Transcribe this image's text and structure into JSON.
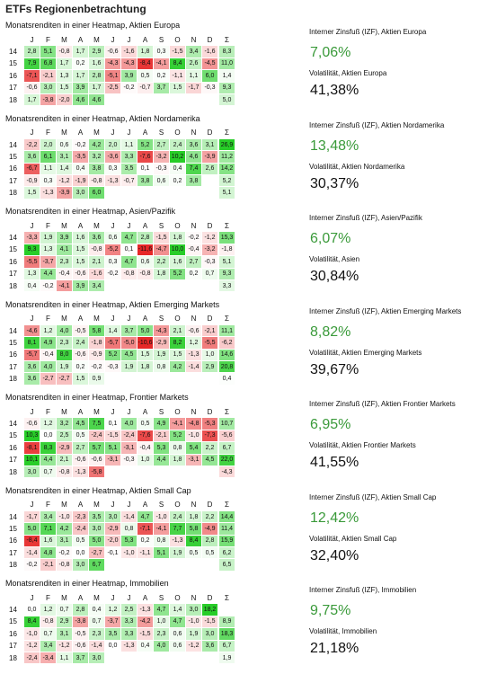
{
  "page_title": "ETFs Regionenbetrachtung",
  "months": [
    "J",
    "F",
    "M",
    "A",
    "M",
    "J",
    "J",
    "A",
    "S",
    "O",
    "N",
    "D",
    "Σ"
  ],
  "sections": [
    {
      "title": "Monatsrenditen in einer Heatmap, Aktien Europa",
      "irr_label": "Interner Zinsfuß (IZF), Aktien Europa",
      "irr_value": "7,06%",
      "vol_label": "Volatilität, Aktien Europa",
      "vol_value": "41,38%",
      "rows": [
        {
          "year": "14",
          "values": [
            "2,8",
            "5,1",
            "-0,8",
            "1,7",
            "2,9",
            "-0,6",
            "-1,6",
            "1,8",
            "0,3",
            "-1,5",
            "3,4",
            "-1,6",
            "8,3"
          ]
        },
        {
          "year": "15",
          "values": [
            "7,9",
            "6,8",
            "1,7",
            "0,2",
            "1,6",
            "-4,3",
            "-4,3",
            "-8,4",
            "-4,1",
            "8,4",
            "2,6",
            "-4,5",
            "11,0"
          ]
        },
        {
          "year": "16",
          "values": [
            "-7,1",
            "-2,1",
            "1,3",
            "1,7",
            "2,8",
            "-5,1",
            "3,9",
            "0,5",
            "0,2",
            "-1,1",
            "1,1",
            "6,0",
            "1,4"
          ]
        },
        {
          "year": "17",
          "values": [
            "-0,6",
            "3,0",
            "1,5",
            "3,9",
            "1,7",
            "-2,5",
            "-0,2",
            "-0,7",
            "3,7",
            "1,5",
            "-1,7",
            "-0,3",
            "9,3"
          ]
        },
        {
          "year": "18",
          "values": [
            "1,7",
            "-3,8",
            "-2,0",
            "4,6",
            "4,6",
            "",
            "",
            "",
            "",
            "",
            "",
            "",
            "5,0"
          ]
        }
      ]
    },
    {
      "title": "Monatsrenditen in einer Heatmap, Aktien Nordamerika",
      "irr_label": "Interner Zinsfuß (IZF), Aktien Nordamerika",
      "irr_value": "13,48%",
      "vol_label": "Volatilität, Aktien Nordamerika",
      "vol_value": "30,37%",
      "rows": [
        {
          "year": "14",
          "values": [
            "-2,2",
            "2,0",
            "0,6",
            "-0,2",
            "4,2",
            "2,0",
            "1,1",
            "5,2",
            "2,7",
            "2,4",
            "3,6",
            "3,1",
            "26,9"
          ]
        },
        {
          "year": "15",
          "values": [
            "3,6",
            "6,1",
            "3,1",
            "-3,5",
            "3,2",
            "-3,6",
            "3,3",
            "-7,6",
            "-3,2",
            "10,2",
            "4,6",
            "-3,9",
            "11,2"
          ]
        },
        {
          "year": "16",
          "values": [
            "-6,7",
            "1,1",
            "1,4",
            "0,4",
            "3,8",
            "0,3",
            "3,5",
            "0,1",
            "-0,3",
            "0,4",
            "7,4",
            "2,6",
            "14,2"
          ]
        },
        {
          "year": "17",
          "values": [
            "-0,9",
            "0,3",
            "-1,2",
            "-1,9",
            "-0,8",
            "-1,3",
            "-0,7",
            "3,8",
            "0,6",
            "0,2",
            "3,8",
            "",
            "5,2"
          ]
        },
        {
          "year": "18",
          "values": [
            "1,5",
            "-1,3",
            "-3,9",
            "3,0",
            "6,0",
            "",
            "",
            "",
            "",
            "",
            "",
            "",
            "5,1"
          ]
        }
      ]
    },
    {
      "title": "Monatsrenditen in einer Heatmap, Asien/Pazifik",
      "irr_label": "Interner Zinsfuß (IZF), Asien/Pazifik",
      "irr_value": "6,07%",
      "vol_label": "Volatilität, Asien",
      "vol_value": "30,84%",
      "rows": [
        {
          "year": "14",
          "values": [
            "-3,3",
            "1,9",
            "3,9",
            "1,6",
            "3,6",
            "0,6",
            "4,7",
            "2,8",
            "-1,5",
            "1,8",
            "-0,2",
            "-1,2",
            "15,3"
          ]
        },
        {
          "year": "15",
          "values": [
            "9,3",
            "1,3",
            "4,1",
            "1,5",
            "-0,8",
            "-5,2",
            "0,1",
            "-11,6",
            "-4,7",
            "10,0",
            "-0,4",
            "-3,2",
            "-1,8"
          ]
        },
        {
          "year": "16",
          "values": [
            "-5,5",
            "-3,7",
            "2,3",
            "1,5",
            "2,1",
            "0,3",
            "4,7",
            "0,6",
            "2,2",
            "1,6",
            "2,7",
            "-0,3",
            "5,1"
          ]
        },
        {
          "year": "17",
          "values": [
            "1,3",
            "4,4",
            "-0,4",
            "-0,6",
            "-1,6",
            "-0,2",
            "-0,8",
            "-0,8",
            "1,8",
            "5,2",
            "0,2",
            "0,7",
            "9,3"
          ]
        },
        {
          "year": "18",
          "values": [
            "0,4",
            "-0,2",
            "-4,1",
            "3,9",
            "3,4",
            "",
            "",
            "",
            "",
            "",
            "",
            "",
            "3,3"
          ]
        }
      ]
    },
    {
      "title": "Monatsrenditen in einer Heatmap, Aktien Emerging Markets",
      "irr_label": "Interner Zinsfuß (IZF), Aktien Emerging Markets",
      "irr_value": "8,82%",
      "vol_label": "Volatilität, Aktien Emerging Markets",
      "vol_value": "39,67%",
      "rows": [
        {
          "year": "14",
          "values": [
            "-4,6",
            "1,2",
            "4,0",
            "-0,5",
            "5,8",
            "1,4",
            "3,7",
            "5,0",
            "-4,3",
            "2,1",
            "-0,6",
            "-2,1",
            "11,1"
          ]
        },
        {
          "year": "15",
          "values": [
            "8,1",
            "4,9",
            "2,3",
            "2,4",
            "-1,8",
            "-5,7",
            "-5,0",
            "-10,6",
            "-2,9",
            "8,2",
            "1,2",
            "-5,5",
            "-6,2"
          ]
        },
        {
          "year": "16",
          "values": [
            "-5,7",
            "-0,4",
            "8,0",
            "-0,6",
            "-0,9",
            "5,2",
            "4,5",
            "1,5",
            "1,9",
            "1,5",
            "-1,3",
            "1,0",
            "14,6"
          ]
        },
        {
          "year": "17",
          "values": [
            "3,6",
            "4,0",
            "1,9",
            "0,2",
            "-0,2",
            "-0,3",
            "1,9",
            "1,8",
            "0,8",
            "4,2",
            "-1,4",
            "2,9",
            "20,8"
          ]
        },
        {
          "year": "18",
          "values": [
            "3,6",
            "-2,7",
            "-2,7",
            "1,5",
            "0,9",
            "",
            "",
            "",
            "",
            "",
            "",
            "",
            "0,4"
          ]
        }
      ]
    },
    {
      "title": "Monatsrenditen in einer Heatmap, Frontier Markets",
      "irr_label": "Interner Zinsfuß (IZF), Aktien Frontier Markets",
      "irr_value": "6,95%",
      "vol_label": "Volatilität, Aktien Frontier Markets",
      "vol_value": "41,55%",
      "rows": [
        {
          "year": "14",
          "values": [
            "-0,6",
            "1,2",
            "3,2",
            "4,5",
            "7,5",
            "0,1",
            "4,0",
            "0,5",
            "4,9",
            "-4,1",
            "-4,8",
            "-5,3",
            "10,7"
          ]
        },
        {
          "year": "15",
          "values": [
            "10,3",
            "0,0",
            "2,5",
            "0,5",
            "-2,4",
            "-1,5",
            "-2,4",
            "-7,6",
            "-2,1",
            "5,2",
            "-1,0",
            "-7,3",
            "-5,6"
          ]
        },
        {
          "year": "16",
          "values": [
            "-8,1",
            "8,3",
            "-2,9",
            "2,7",
            "5,7",
            "5,1",
            "-3,1",
            "-0,4",
            "5,3",
            "0,8",
            "5,4",
            "2,2",
            "6,7"
          ]
        },
        {
          "year": "17",
          "values": [
            "10,1",
            "4,4",
            "2,1",
            "-0,6",
            "-0,6",
            "-3,1",
            "-0,3",
            "1,0",
            "4,4",
            "1,8",
            "-3,1",
            "4,5",
            "22,0"
          ]
        },
        {
          "year": "18",
          "values": [
            "3,0",
            "0,7",
            "-0,8",
            "-1,3",
            "-5,8",
            "",
            "",
            "",
            "",
            "",
            "",
            "",
            "-4,3"
          ]
        }
      ]
    },
    {
      "title": "Monatsrenditen in einer Heatmap, Aktien Small Cap",
      "irr_label": "Interner Zinsfuß (IZF), Aktien Small Cap",
      "irr_value": "12,42%",
      "vol_label": "Volatilität, Aktien Small Cap",
      "vol_value": "32,40%",
      "rows": [
        {
          "year": "14",
          "values": [
            "-1,7",
            "3,4",
            "-1,0",
            "-2,3",
            "3,5",
            "3,0",
            "-1,4",
            "4,7",
            "-1,0",
            "2,4",
            "1,8",
            "2,2",
            "14,4"
          ]
        },
        {
          "year": "15",
          "values": [
            "5,0",
            "7,1",
            "4,2",
            "-2,4",
            "3,0",
            "-2,9",
            "0,8",
            "-7,1",
            "-4,1",
            "7,7",
            "5,8",
            "-4,9",
            "11,4"
          ]
        },
        {
          "year": "16",
          "values": [
            "-8,4",
            "1,6",
            "3,1",
            "0,5",
            "5,0",
            "-2,0",
            "5,3",
            "0,2",
            "0,8",
            "-1,3",
            "8,4",
            "2,8",
            "15,9"
          ]
        },
        {
          "year": "17",
          "values": [
            "-1,4",
            "4,8",
            "-0,2",
            "0,0",
            "-2,7",
            "-0,1",
            "-1,0",
            "-1,1",
            "5,1",
            "1,9",
            "0,5",
            "0,5",
            "6,2"
          ]
        },
        {
          "year": "18",
          "values": [
            "-0,2",
            "-2,1",
            "-0,8",
            "3,0",
            "6,7",
            "",
            "",
            "",
            "",
            "",
            "",
            "",
            "6,5"
          ]
        }
      ]
    },
    {
      "title": "Monatsrenditen in einer Heatmap, Immobilien",
      "irr_label": "Interner Zinsfuß (IZF), Immobilien",
      "irr_value": "9,75%",
      "vol_label": "Volatilität, Immobilien",
      "vol_value": "21,18%",
      "rows": [
        {
          "year": "14",
          "values": [
            "0,0",
            "1,2",
            "0,7",
            "2,8",
            "0,4",
            "1,2",
            "2,5",
            "-1,3",
            "4,7",
            "1,4",
            "3,0",
            "18,2",
            ""
          ]
        },
        {
          "year": "15",
          "values": [
            "8,4",
            "-0,8",
            "2,9",
            "-3,8",
            "0,7",
            "-3,7",
            "3,3",
            "-4,2",
            "1,0",
            "4,7",
            "-1,0",
            "-1,5",
            "8,9"
          ]
        },
        {
          "year": "16",
          "values": [
            "-1,0",
            "0,7",
            "3,1",
            "-0,5",
            "2,3",
            "3,5",
            "3,3",
            "-1,5",
            "2,3",
            "0,6",
            "1,9",
            "3,0",
            "18,3"
          ]
        },
        {
          "year": "17",
          "values": [
            "-1,2",
            "3,4",
            "-1,2",
            "-0,6",
            "-1,4",
            "0,0",
            "-1,3",
            "0,4",
            "4,0",
            "0,6",
            "-1,2",
            "3,6",
            "6,7"
          ]
        },
        {
          "year": "18",
          "values": [
            "-2,4",
            "-3,4",
            "1,1",
            "3,7",
            "3,0",
            "",
            "",
            "",
            "",
            "",
            "",
            "",
            "1,9"
          ]
        }
      ]
    }
  ]
}
